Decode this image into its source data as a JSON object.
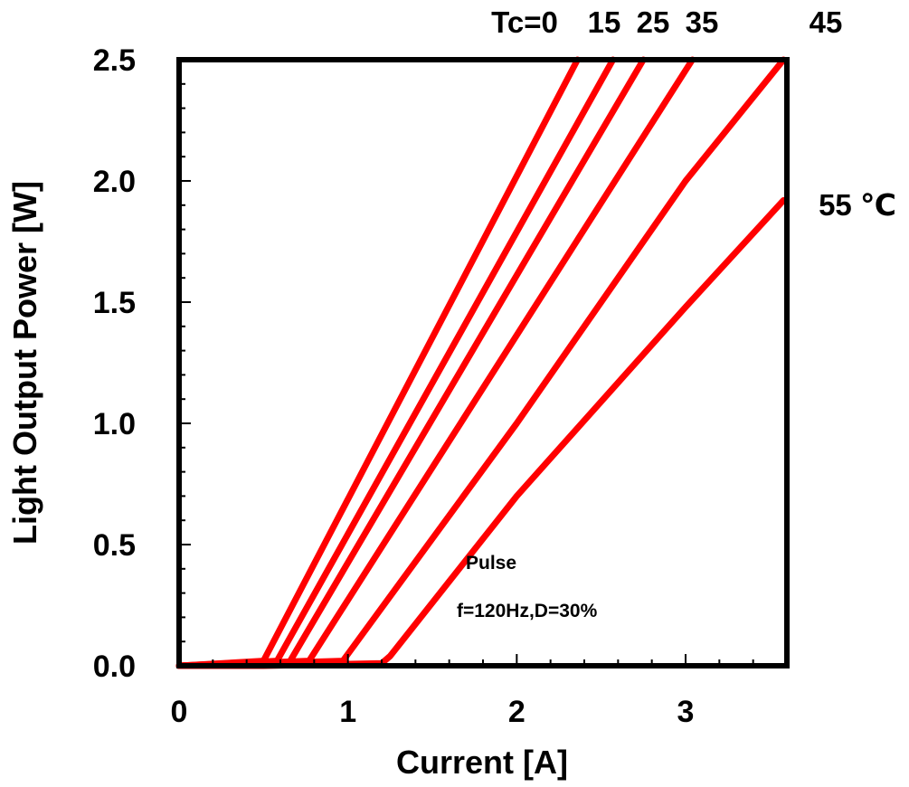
{
  "chart_data": {
    "type": "line",
    "xlabel": "Current [A]",
    "ylabel": "Light Output Power [W]",
    "xlim": [
      0,
      3.6
    ],
    "ylim": [
      0,
      2.5
    ],
    "x_ticks": [
      "0",
      "1",
      "2",
      "3"
    ],
    "x_tick_values": [
      0,
      1,
      2,
      3
    ],
    "y_ticks": [
      "0.0",
      "0.5",
      "1.0",
      "1.5",
      "2.0",
      "2.5"
    ],
    "y_tick_values": [
      0,
      0.5,
      1.0,
      1.5,
      2.0,
      2.5
    ],
    "grid": false,
    "line_color": "#ff0000",
    "series_labels": [
      "Tc=0",
      "15",
      "25",
      "35",
      "45",
      "55 ℃"
    ],
    "series": [
      {
        "points": [
          [
            0,
            0
          ],
          [
            0.5,
            0.02
          ],
          [
            2.36,
            2.5
          ]
        ]
      },
      {
        "points": [
          [
            0,
            0
          ],
          [
            0.58,
            0.02
          ],
          [
            2.57,
            2.5
          ]
        ]
      },
      {
        "points": [
          [
            0,
            0
          ],
          [
            0.65,
            0.01
          ],
          [
            2.75,
            2.5
          ]
        ]
      },
      {
        "points": [
          [
            0,
            0
          ],
          [
            0.77,
            0.02
          ],
          [
            3.04,
            2.5
          ]
        ]
      },
      {
        "points": [
          [
            0,
            0
          ],
          [
            0.97,
            0.02
          ],
          [
            2.0,
            1.0
          ],
          [
            3.0,
            2.0
          ],
          [
            3.58,
            2.5
          ]
        ]
      },
      {
        "points": [
          [
            0,
            0
          ],
          [
            0.5,
            0.0
          ],
          [
            1.2,
            0.01
          ],
          [
            1.25,
            0.04
          ],
          [
            2.0,
            0.7
          ],
          [
            3.0,
            1.48
          ],
          [
            3.58,
            1.92
          ]
        ]
      }
    ],
    "annotations": [
      "Pulse",
      "f=120Hz,D=30%"
    ]
  }
}
